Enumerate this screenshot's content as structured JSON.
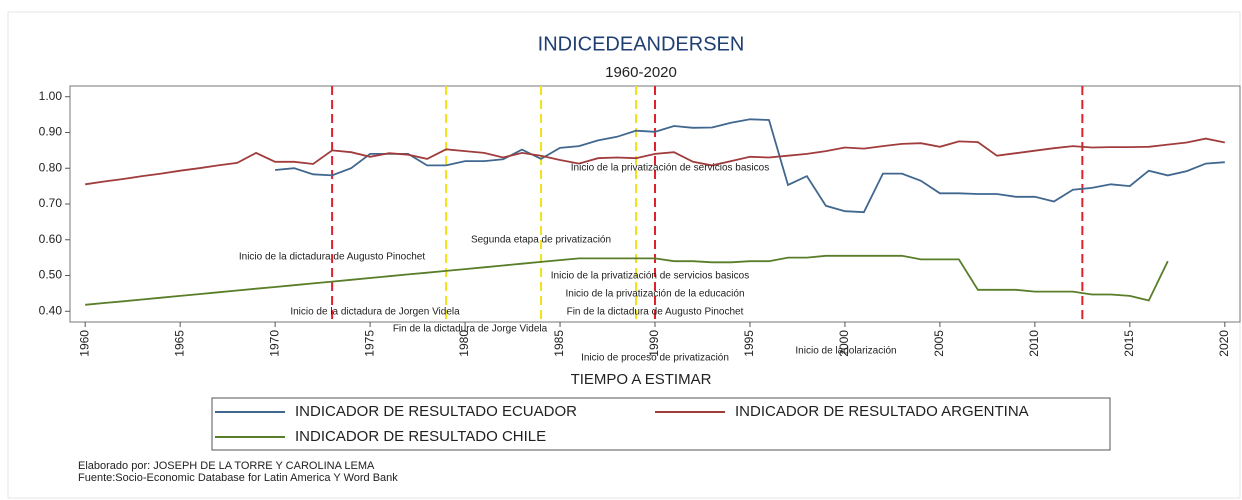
{
  "chart_data": {
    "type": "line",
    "title": "INDICEDEANDERSEN",
    "subtitle": "1960-2020",
    "xlabel": "TIEMPO A ESTIMAR",
    "x": [
      1960,
      1961,
      1962,
      1963,
      1964,
      1965,
      1966,
      1967,
      1968,
      1969,
      1970,
      1971,
      1972,
      1973,
      1974,
      1975,
      1976,
      1977,
      1978,
      1979,
      1980,
      1981,
      1982,
      1983,
      1984,
      1985,
      1986,
      1987,
      1988,
      1989,
      1990,
      1991,
      1992,
      1993,
      1994,
      1995,
      1996,
      1997,
      1998,
      1999,
      2000,
      2001,
      2002,
      2003,
      2004,
      2005,
      2006,
      2007,
      2008,
      2009,
      2010,
      2011,
      2012,
      2013,
      2014,
      2015,
      2016,
      2017,
      2018,
      2019,
      2020
    ],
    "series": [
      {
        "name": "INDICADOR DE RESULTADO ECUADOR",
        "color": "#41678f",
        "values": [
          null,
          null,
          null,
          null,
          null,
          null,
          null,
          null,
          null,
          null,
          0.795,
          0.8,
          0.783,
          0.78,
          0.8,
          0.84,
          0.84,
          0.84,
          0.808,
          0.808,
          0.82,
          0.82,
          0.825,
          0.852,
          0.826,
          0.857,
          0.862,
          0.878,
          0.888,
          0.905,
          0.902,
          0.918,
          0.913,
          0.914,
          0.927,
          0.937,
          0.935,
          0.753,
          0.778,
          0.695,
          0.68,
          0.677,
          0.785,
          0.785,
          0.765,
          0.73,
          0.73,
          0.728,
          0.728,
          0.72,
          0.72,
          0.707,
          0.74,
          0.745,
          0.755,
          0.75,
          0.793,
          0.78,
          0.792,
          0.813,
          0.817
        ]
      },
      {
        "name": "INDICADOR DE RESULTADO ARGENTINA",
        "color": "#a03c3c",
        "values": [
          0.755,
          0.763,
          0.77,
          0.778,
          0.785,
          0.793,
          0.8,
          0.808,
          0.815,
          0.843,
          0.818,
          0.818,
          0.812,
          0.85,
          0.845,
          0.832,
          0.842,
          0.838,
          0.826,
          0.853,
          0.848,
          0.843,
          0.83,
          0.843,
          0.835,
          0.823,
          0.813,
          0.828,
          0.83,
          0.828,
          0.84,
          0.845,
          0.818,
          0.808,
          0.82,
          0.832,
          0.83,
          0.835,
          0.84,
          0.848,
          0.858,
          0.855,
          0.862,
          0.868,
          0.87,
          0.86,
          0.875,
          0.873,
          0.835,
          0.842,
          0.849,
          0.856,
          0.862,
          0.858,
          0.859,
          0.859,
          0.86,
          0.866,
          0.872,
          0.883,
          0.872
        ]
      },
      {
        "name": "INDICADOR DE RESULTADO CHILE",
        "color": "#5a7d2a",
        "values": [
          0.418,
          0.423,
          0.428,
          0.433,
          0.438,
          0.443,
          0.448,
          0.453,
          0.458,
          0.463,
          0.468,
          0.473,
          0.478,
          0.483,
          0.488,
          0.493,
          0.498,
          0.503,
          0.508,
          0.513,
          0.518,
          0.523,
          0.528,
          0.533,
          0.538,
          0.543,
          0.548,
          0.548,
          0.548,
          0.548,
          0.548,
          0.54,
          0.54,
          0.537,
          0.537,
          0.54,
          0.54,
          0.55,
          0.55,
          0.555,
          0.555,
          0.555,
          0.555,
          0.555,
          0.545,
          0.545,
          0.545,
          0.46,
          0.46,
          0.46,
          0.455,
          0.455,
          0.455,
          0.447,
          0.447,
          0.443,
          0.43,
          0.54,
          null,
          null,
          null
        ]
      }
    ],
    "xlim": [
      1959.2,
      2020.8
    ],
    "xticks": [
      1960,
      1965,
      1970,
      1975,
      1980,
      1985,
      1990,
      1995,
      2000,
      2005,
      2010,
      2015,
      2020
    ],
    "ylim": [
      0.37,
      1.03
    ],
    "yticks": [
      {
        "value": 0.4,
        "label": "0.40"
      },
      {
        "value": 0.5,
        "label": "0.50"
      },
      {
        "value": 0.6,
        "label": "0.60"
      },
      {
        "value": 0.7,
        "label": "0.70"
      },
      {
        "value": 0.8,
        "label": "0.80"
      },
      {
        "value": 0.9,
        "label": "0.90"
      },
      {
        "value": 1.0,
        "label": "1.00"
      }
    ],
    "vlines": [
      {
        "x": 1973,
        "color": "#e0202a"
      },
      {
        "x": 1990,
        "color": "#e0202a"
      },
      {
        "x": 2012.5,
        "color": "#e0202a"
      },
      {
        "x": 1979,
        "color": "#f2e21a"
      },
      {
        "x": 1984,
        "color": "#f2e21a"
      },
      {
        "x": 1989,
        "color": "#f2e21a"
      }
    ],
    "annotations": [
      "Inicio de la privatización de servicios basicos",
      "Segunda etapa de privatización",
      "Inicio de la dictadura de Augusto Pinochet",
      "Inicio de la privatización de servicios basicos",
      "Inicio de la privatización de la educación",
      "Inicio de la dictadura de Jorgen Videla",
      "Fin de la dictadura de Augusto Pinochet",
      "Fin de la dictadura de Jorge Videla",
      "Inicio de proceso de privatización",
      "Inicio de ladolarización"
    ],
    "notes": [
      "Elaborado por: JOSEPH DE LA TORRE Y CAROLINA LEMA",
      "Fuente:Socio-Economic Database for Latin America Y Word Bank"
    ]
  }
}
